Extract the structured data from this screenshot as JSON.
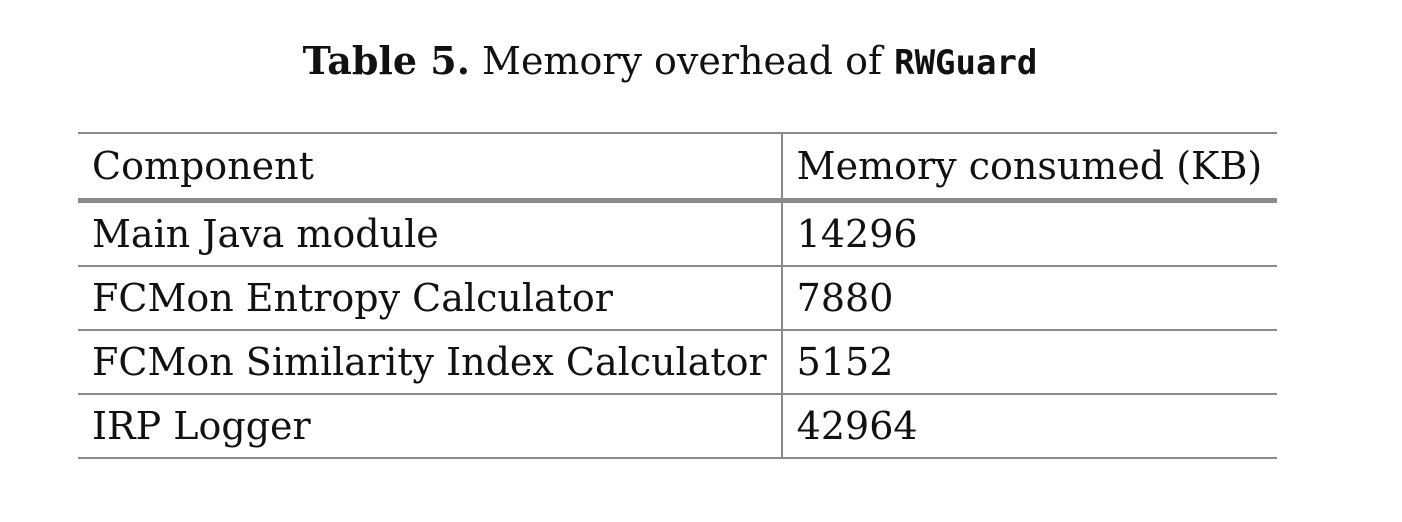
{
  "caption": {
    "label": "Table 5.",
    "text": "Memory overhead of",
    "tool_name": "RWGuard"
  },
  "table": {
    "columns": [
      "Component",
      "Memory consumed (KB)"
    ],
    "rows": [
      {
        "component": "Main Java module",
        "memory_kb": "14296"
      },
      {
        "component": "FCMon Entropy Calculator",
        "memory_kb": "7880"
      },
      {
        "component": "FCMon Similarity Index Calculator",
        "memory_kb": "5152"
      },
      {
        "component": "IRP Logger",
        "memory_kb": "42964"
      }
    ]
  }
}
